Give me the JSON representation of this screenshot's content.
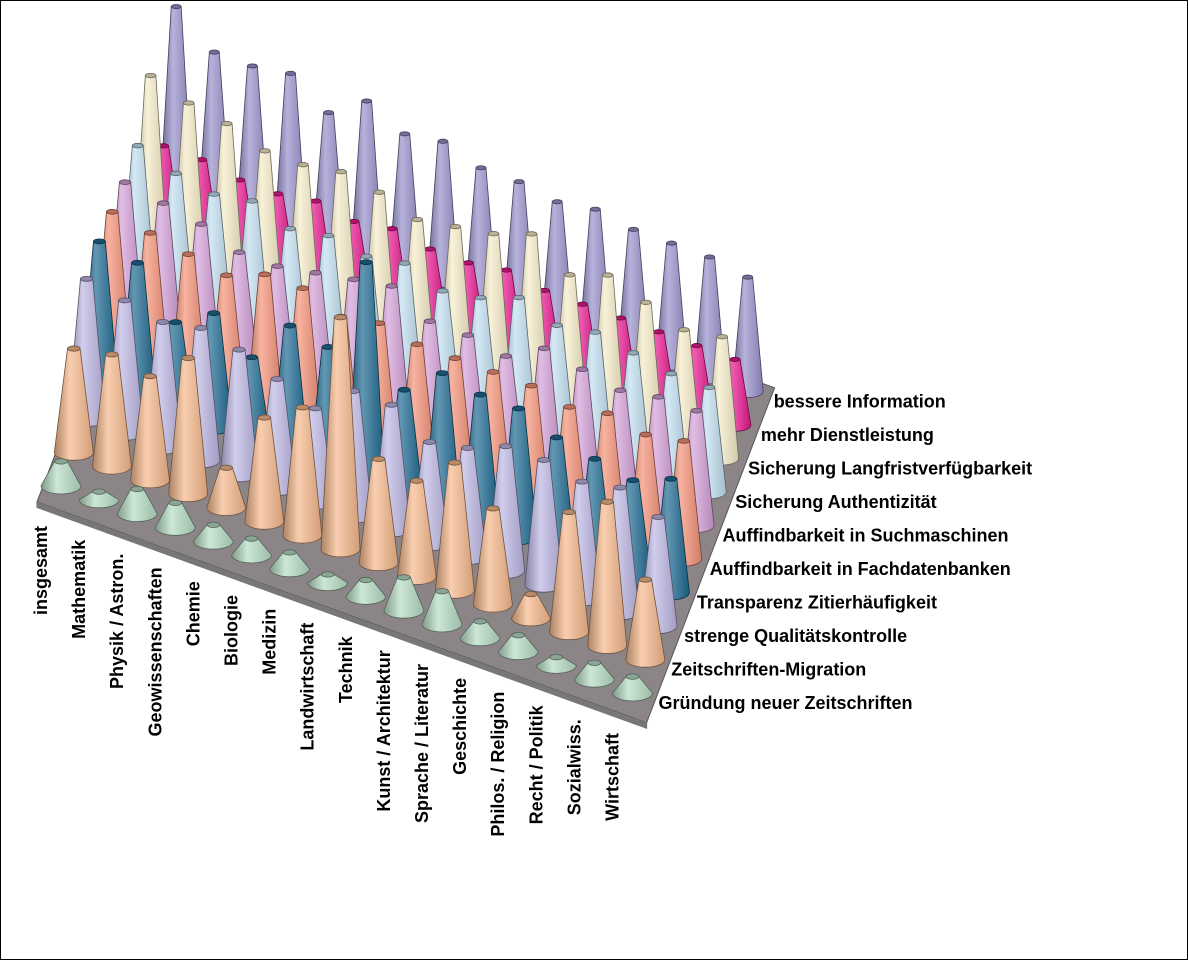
{
  "chart_data": {
    "type": "3d-cone",
    "categories": [
      "insgesamt",
      "Mathematik",
      "Physik / Astron.",
      "Geowissenschaften",
      "Chemie",
      "Biologie",
      "Medizin",
      "Landwirtschaft",
      "Technik",
      "Kunst / Architektur",
      "Sprache / Literatur",
      "Geschichte",
      "Philos. / Religion",
      "Recht / Politik",
      "Sozialwiss.",
      "Wirtschaft"
    ],
    "series": [
      {
        "name": "Gründung neuer Zeitschriften",
        "color": "#b8dcc4",
        "values": [
          0.3,
          0.1,
          0.3,
          0.3,
          0.2,
          0.2,
          0.2,
          0.1,
          0.2,
          0.4,
          0.4,
          0.2,
          0.2,
          0.1,
          0.2,
          0.2
        ]
      },
      {
        "name": "Zeitschriften-Migration",
        "color": "#f6b98c",
        "values": [
          1.3,
          1.4,
          1.3,
          1.7,
          0.5,
          1.3,
          1.6,
          2.9,
          1.3,
          1.2,
          1.6,
          1.2,
          0.3,
          1.5,
          1.8,
          1.0
        ]
      },
      {
        "name": "strenge Qualitätskontrolle",
        "color": "#bdb7e4",
        "values": [
          1.8,
          1.7,
          1.6,
          1.7,
          1.6,
          1.4,
          1.2,
          1.6,
          1.6,
          1.3,
          1.4,
          1.6,
          1.6,
          1.5,
          1.6,
          1.4
        ]
      },
      {
        "name": "Transparenz Zitierhäufigkeit",
        "color": "#1f6a92",
        "values": [
          1.9,
          1.8,
          1.2,
          1.5,
          1.1,
          1.7,
          1.6,
          2.9,
          1.4,
          1.8,
          1.7,
          1.7,
          1.5,
          1.4,
          1.3,
          1.5
        ]
      },
      {
        "name": "Auffindbarkeit in Fachdatenbanken",
        "color": "#f59277",
        "values": [
          1.9,
          1.8,
          1.7,
          1.6,
          1.8,
          1.8,
          1.6,
          1.7,
          1.6,
          1.6,
          1.6,
          1.6,
          1.5,
          1.6,
          1.5,
          1.6
        ]
      },
      {
        "name": "Auffindbarkeit in Suchmaschinen",
        "color": "#d4a0d8",
        "values": [
          1.9,
          1.8,
          1.7,
          1.5,
          1.5,
          1.6,
          1.7,
          1.8,
          1.5,
          1.5,
          1.4,
          1.7,
          1.6,
          1.5,
          1.6,
          1.6
        ]
      },
      {
        "name": "Sicherung Authentizität",
        "color": "#c2e0f0",
        "values": [
          2.0,
          1.8,
          1.7,
          1.8,
          1.6,
          1.7,
          1.6,
          1.7,
          1.5,
          1.6,
          1.8,
          1.6,
          1.7,
          1.6,
          1.5,
          1.5
        ]
      },
      {
        "name": "Sicherung Langfristverfügbarkeit",
        "color": "#f6ecc8",
        "values": [
          2.6,
          2.4,
          2.3,
          2.1,
          2.1,
          2.2,
          2.1,
          1.9,
          2.0,
          2.1,
          2.3,
          1.9,
          2.1,
          1.9,
          1.7,
          1.8
        ]
      },
      {
        "name": "mehr Dienstleistung",
        "color": "#e8188f",
        "values": [
          1.1,
          1.1,
          1.0,
          1.0,
          1.1,
          1.0,
          1.1,
          1.0,
          1.0,
          1.1,
          1.0,
          1.0,
          1.0,
          1.0,
          1.0,
          1.0
        ]
      },
      {
        "name": "bessere Information",
        "color": "#9891cc",
        "values": [
          2.8,
          2.3,
          2.3,
          2.4,
          2.0,
          2.4,
          2.1,
          2.2,
          2.0,
          2.0,
          1.9,
          2.0,
          1.9,
          1.9,
          1.9,
          1.8
        ]
      }
    ],
    "legend": "series labels along right depth axis"
  }
}
